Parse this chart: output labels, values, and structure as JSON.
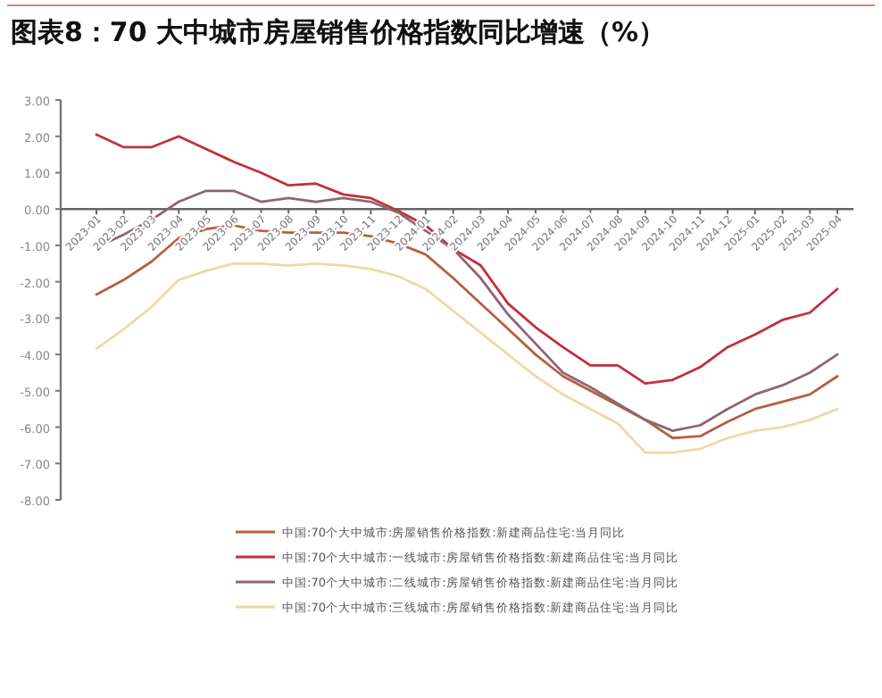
{
  "chart_data": {
    "type": "line",
    "title": "图表8：70 大中城市房屋销售价格指数同比增速（%）",
    "categories": [
      "2023-01",
      "2023-02",
      "2023-03",
      "2023-04",
      "2023-05",
      "2023-06",
      "2023-07",
      "2023-08",
      "2023-09",
      "2023-10",
      "2023-11",
      "2023-12",
      "2024-01",
      "2024-02",
      "2024-03",
      "2024-04",
      "2024-05",
      "2024-06",
      "2024-07",
      "2024-08",
      "2024-09",
      "2024-10",
      "2024-11",
      "2024-12",
      "2025-01",
      "2025-02",
      "2025-03",
      "2025-04"
    ],
    "series": [
      {
        "name": "中国:70个大中城市:房屋销售价格指数:新建商品住宅:当月同比",
        "color": "#b5603f",
        "values": [
          -2.35,
          -1.95,
          -1.45,
          -0.8,
          -0.55,
          -0.45,
          -0.6,
          -0.65,
          -0.65,
          -0.65,
          -0.75,
          -0.95,
          -1.25,
          -1.9,
          -2.6,
          -3.3,
          -4.0,
          -4.6,
          -5.0,
          -5.4,
          -5.8,
          -6.3,
          -6.25,
          -5.85,
          -5.5,
          -5.3,
          -5.1,
          -4.6
        ]
      },
      {
        "name": "中国:70个大中城市:一线城市:房屋销售价格指数:新建商品住宅:当月同比",
        "color": "#c0303c",
        "values": [
          2.05,
          1.7,
          1.7,
          2.0,
          1.65,
          1.3,
          1.0,
          0.65,
          0.7,
          0.4,
          0.3,
          -0.05,
          -0.45,
          -1.1,
          -1.55,
          -2.6,
          -3.25,
          -3.8,
          -4.3,
          -4.3,
          -4.8,
          -4.7,
          -4.35,
          -3.8,
          -3.45,
          -3.05,
          -2.85,
          -2.2
        ]
      },
      {
        "name": "中国:70个大中城市:二线城市:房屋销售价格指数:新建商品住宅:当月同比",
        "color": "#8e6676",
        "values": [
          -1.05,
          -0.7,
          -0.3,
          0.2,
          0.5,
          0.5,
          0.2,
          0.3,
          0.2,
          0.3,
          0.2,
          -0.1,
          -0.6,
          -1.1,
          -1.9,
          -2.9,
          -3.7,
          -4.5,
          -4.9,
          -5.35,
          -5.8,
          -6.1,
          -5.95,
          -5.5,
          -5.1,
          -4.85,
          -4.5,
          -4.0
        ]
      },
      {
        "name": "中国:70个大中城市:三线城市:房屋销售价格指数:新建商品住宅:当月同比",
        "color": "#eed9a6",
        "values": [
          -3.85,
          -3.3,
          -2.7,
          -1.95,
          -1.7,
          -1.5,
          -1.5,
          -1.55,
          -1.5,
          -1.55,
          -1.65,
          -1.85,
          -2.2,
          -2.8,
          -3.4,
          -4.0,
          -4.6,
          -5.1,
          -5.5,
          -5.9,
          -6.7,
          -6.7,
          -6.6,
          -6.3,
          -6.1,
          -6.0,
          -5.8,
          -5.5
        ]
      }
    ],
    "ylim": [
      -8,
      3
    ],
    "yticks": [
      {
        "value": 3,
        "label": "3.00"
      },
      {
        "value": 2,
        "label": "2.00"
      },
      {
        "value": 1,
        "label": "1.00"
      },
      {
        "value": 0,
        "label": "0.00"
      },
      {
        "value": -1,
        "label": "-1.00"
      },
      {
        "value": -2,
        "label": "-2.00"
      },
      {
        "value": -3,
        "label": "-3.00"
      },
      {
        "value": -4,
        "label": "-4.00"
      },
      {
        "value": -5,
        "label": "-5.00"
      },
      {
        "value": -6,
        "label": "-6.00"
      },
      {
        "value": -7,
        "label": "-7.00"
      },
      {
        "value": -8,
        "label": "-8.00"
      }
    ],
    "legend": "bottom"
  }
}
